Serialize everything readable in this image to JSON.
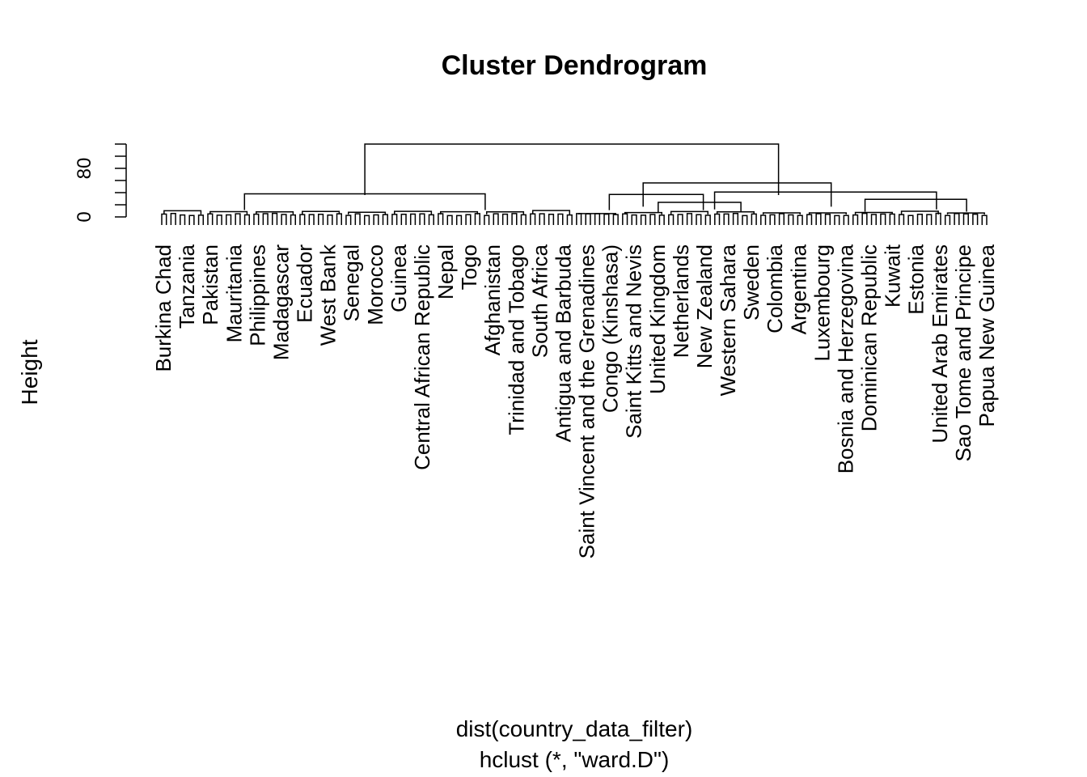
{
  "chart_data": {
    "type": "dendrogram",
    "title": "Cluster Dendrogram",
    "ylabel": "Height",
    "xlabel": "dist(country_data_filter)",
    "sub": "hclust (*, \"ward.D\")",
    "ylim": [
      0,
      120
    ],
    "yticks": [
      0,
      80
    ],
    "yticks_minor": [
      0,
      20,
      40,
      60,
      80,
      100,
      120
    ],
    "merges": [
      {
        "left": [
          0,
          0
        ],
        "right": [
          0,
          0
        ],
        "height": 0
      },
      {
        "x1": 0.27,
        "x2": 0.82,
        "height": 120
      },
      {
        "x1": 0.11,
        "x2": 0.43,
        "height": 38
      },
      {
        "x1": 0.64,
        "x2": 0.89,
        "height": 56
      },
      {
        "x1": 0.595,
        "x2": 0.72,
        "height": 37
      },
      {
        "x1": 0.735,
        "x2": 1.03,
        "height": 41
      },
      {
        "x1": 0.66,
        "x2": 0.77,
        "height": 24
      },
      {
        "x1": 0.935,
        "x2": 1.07,
        "height": 29
      }
    ],
    "leaf_labels": [
      "Burkina Chad",
      "Tanzania",
      "Pakistan",
      "Mauritania",
      "Philippines",
      "Madagascar",
      "Ecuador",
      "West Bank",
      "Senegal",
      "Morocco",
      "Guinea",
      "Central African Republic",
      "Nepal",
      "Togo",
      "Afghanistan",
      "Trinidad and Tobago",
      "South Africa",
      "Antigua and Barbuda",
      "Saint Vincent and the Grenadines",
      "Congo (Kinshasa)",
      "Saint Kitts and Nevis",
      "United Kingdom",
      "Netherlands",
      "New Zealand",
      "Western Sahara",
      "Sweden",
      "Colombia",
      "Argentina",
      "Luxembourg",
      "Bosnia and Herzegovina",
      "Dominican Republic",
      "Kuwait",
      "Estonia",
      "United Arab Emirates",
      "Sao Tome and Principe",
      "Papua New Guinea"
    ]
  }
}
